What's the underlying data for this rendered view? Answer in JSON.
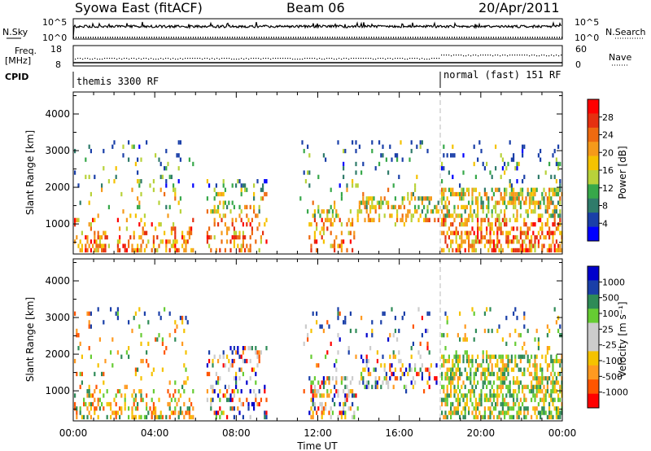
{
  "header": {
    "station": "Syowa East (fitACF)",
    "beam": "Beam 06",
    "date": "20/Apr/2011"
  },
  "panels": {
    "nsky": {
      "left_label": "N.Sky",
      "right_label": "N.Search",
      "left_ticks": [
        "10^5",
        "10^0"
      ],
      "right_ticks": [
        "10^5",
        "10^0"
      ]
    },
    "freq": {
      "left_label_line1": "Freq.",
      "left_label_line2": "[MHz]",
      "right_label": "Nave",
      "left_ticks": [
        "18",
        "8"
      ],
      "right_ticks": [
        "60",
        "0"
      ]
    },
    "cpid": {
      "label": "CPID",
      "segments": [
        {
          "name": "themis 3300 RF",
          "start_hour": 0
        },
        {
          "name": "normal (fast) 151 RF",
          "start_hour": 18
        }
      ]
    }
  },
  "colors": {
    "power_scale": [
      "#0000ff",
      "#1a3fa8",
      "#2f7b6a",
      "#37a84a",
      "#b8d23a",
      "#f5c200",
      "#f59a1a",
      "#ee6a10",
      "#e53010",
      "#ff0000"
    ],
    "velocity_scale": [
      "#ff0000",
      "#ff5500",
      "#ff9a20",
      "#f5c200",
      "#cccccc",
      "#cccccc",
      "#66cc33",
      "#2e8b57",
      "#1a3fa8",
      "#0000cc"
    ]
  },
  "chart_data": [
    {
      "type": "heatmap",
      "name": "Power",
      "ylabel": "Slant Range [km]",
      "xlabel": "",
      "x_range_hours": [
        0,
        24
      ],
      "ylim": [
        180,
        4600
      ],
      "yticks": [
        1000,
        2000,
        3000,
        4000
      ],
      "colorbar_label": "Power [dB]",
      "colorbar_ticks": [
        "28",
        "24",
        "20",
        "16",
        "12",
        "8",
        "4"
      ],
      "colorbar_range": [
        0,
        30
      ]
    },
    {
      "type": "heatmap",
      "name": "Velocity",
      "ylabel": "Slant Range [km]",
      "xlabel": "Time UT",
      "x_range_hours": [
        0,
        24
      ],
      "xticks": [
        "00:00",
        "04:00",
        "08:00",
        "12:00",
        "16:00",
        "20:00",
        "00:00"
      ],
      "ylim": [
        180,
        4600
      ],
      "yticks": [
        1000,
        2000,
        3000,
        4000
      ],
      "colorbar_label": "Velocity [m s⁻¹]",
      "colorbar_ticks": [
        "1000",
        "500",
        "100",
        "25",
        "-25",
        "-100",
        "-500",
        "-1000"
      ]
    }
  ]
}
